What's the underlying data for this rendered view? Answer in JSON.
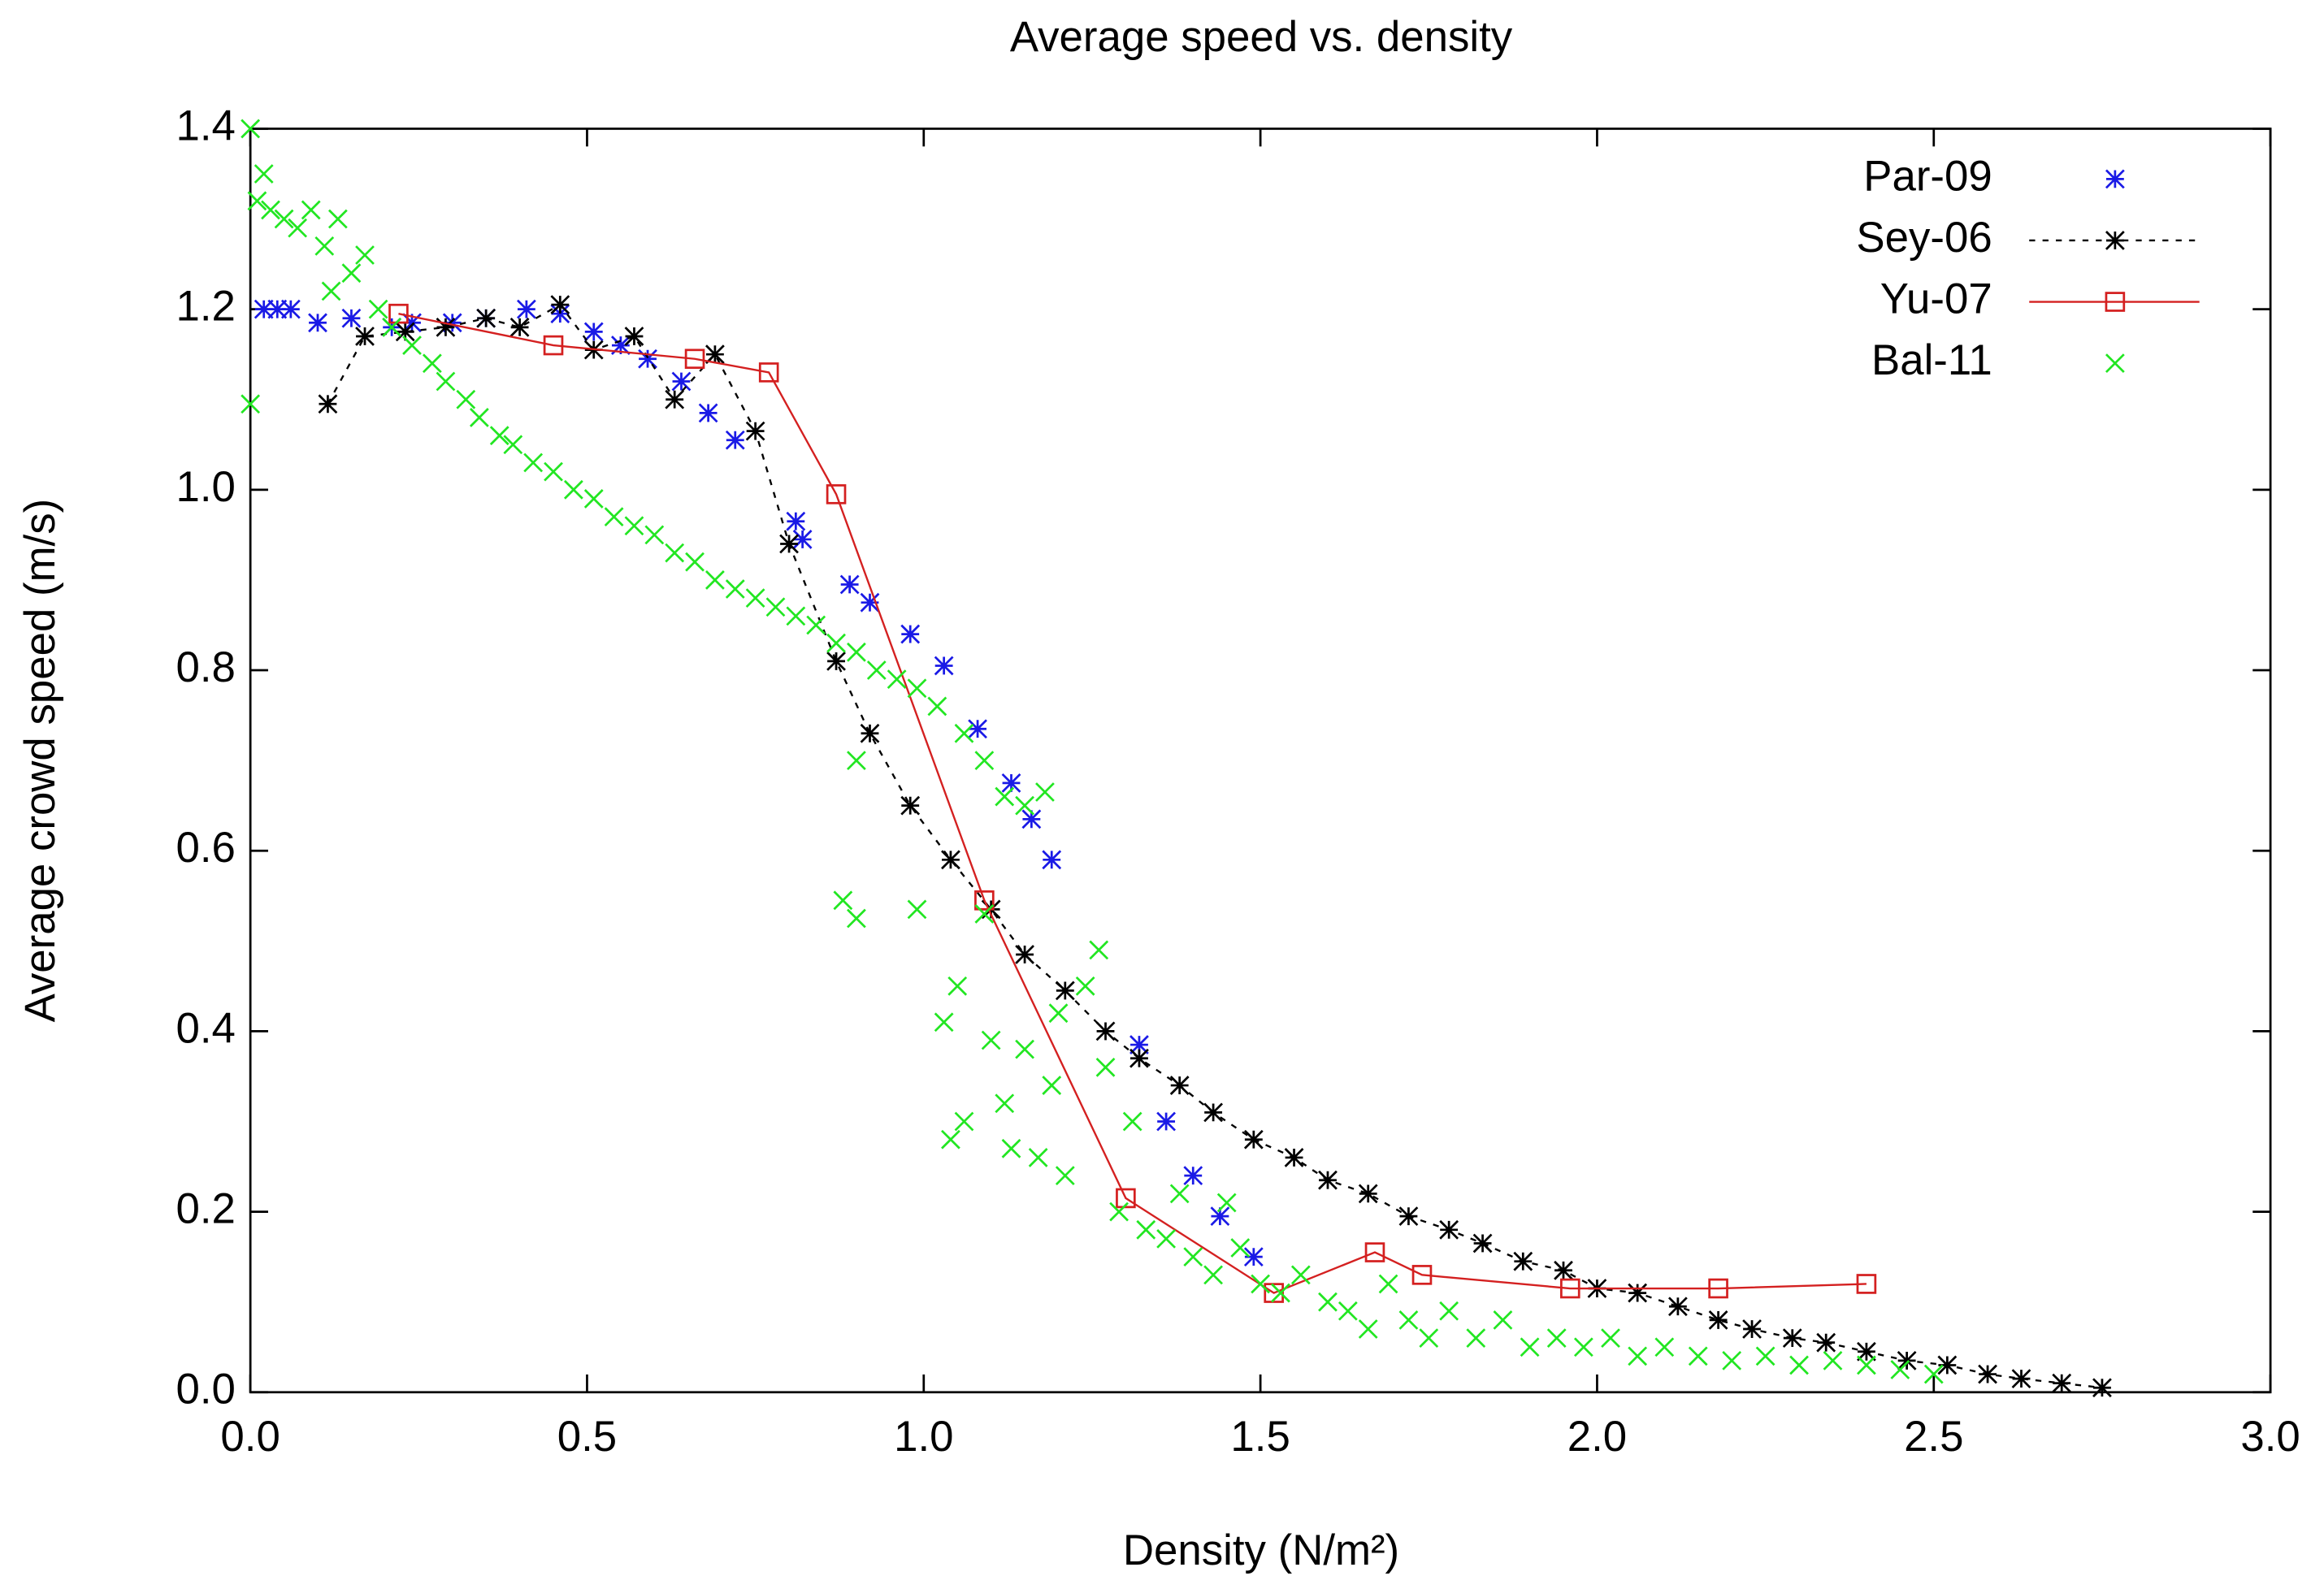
{
  "chart_data": {
    "type": "scatter",
    "title": "Average speed vs. density",
    "x_label": "Density (N/m²)",
    "y_label": "Average crowd speed (m/s)",
    "xlim": [
      0,
      3
    ],
    "ylim": [
      0,
      1.4
    ],
    "xticks": [
      {
        "value": 0,
        "label": "0.0"
      },
      0.5,
      {
        "value": 1,
        "label": "1.0"
      },
      1.5,
      {
        "value": 2,
        "label": "2.0"
      },
      2.5,
      {
        "value": 3,
        "label": "3.0"
      }
    ],
    "yticks": [
      {
        "value": 0,
        "label": "0.0"
      },
      0.2,
      0.4,
      0.6,
      0.8,
      {
        "value": 1,
        "label": "1.0"
      },
      1.2,
      1.4
    ],
    "grid": false,
    "legend": "top-right",
    "series": [
      {
        "name": "Par-09",
        "color": "#1a1ae6",
        "marker": "asterisk",
        "line": "none",
        "x": [
          0.02,
          0.04,
          0.06,
          0.1,
          0.15,
          0.21,
          0.24,
          0.3,
          0.35,
          0.41,
          0.46,
          0.51,
          0.55,
          0.59,
          0.64,
          0.68,
          0.72,
          0.81,
          0.82,
          0.89,
          0.92,
          0.98,
          1.03,
          1.08,
          1.13,
          1.16,
          1.19,
          1.32,
          1.36,
          1.4,
          1.44,
          1.49
        ],
        "values": [
          1.2,
          1.2,
          1.2,
          1.185,
          1.19,
          1.18,
          1.185,
          1.185,
          1.19,
          1.2,
          1.195,
          1.175,
          1.16,
          1.145,
          1.12,
          1.085,
          1.055,
          0.965,
          0.945,
          0.895,
          0.875,
          0.84,
          0.805,
          0.735,
          0.675,
          0.635,
          0.59,
          0.385,
          0.3,
          0.24,
          0.195,
          0.15
        ]
      },
      {
        "name": "Sey-06",
        "color": "#000000",
        "marker": "asterisk",
        "line": "dashed",
        "x": [
          0.115,
          0.17,
          0.23,
          0.29,
          0.35,
          0.4,
          0.46,
          0.51,
          0.57,
          0.63,
          0.69,
          0.75,
          0.8,
          0.87,
          0.92,
          0.98,
          1.04,
          1.1,
          1.15,
          1.21,
          1.27,
          1.32,
          1.38,
          1.43,
          1.49,
          1.55,
          1.6,
          1.66,
          1.72,
          1.78,
          1.83,
          1.89,
          1.95,
          2.0,
          2.06,
          2.12,
          2.18,
          2.23,
          2.29,
          2.34,
          2.4,
          2.46,
          2.52,
          2.58,
          2.63,
          2.69,
          2.75
        ],
        "values": [
          1.095,
          1.17,
          1.175,
          1.18,
          1.19,
          1.18,
          1.205,
          1.155,
          1.17,
          1.1,
          1.15,
          1.065,
          0.94,
          0.81,
          0.73,
          0.65,
          0.59,
          0.535,
          0.485,
          0.445,
          0.4,
          0.37,
          0.34,
          0.31,
          0.28,
          0.26,
          0.235,
          0.22,
          0.195,
          0.18,
          0.165,
          0.145,
          0.135,
          0.115,
          0.11,
          0.095,
          0.08,
          0.07,
          0.06,
          0.055,
          0.045,
          0.035,
          0.03,
          0.02,
          0.015,
          0.01,
          0.005
        ]
      },
      {
        "name": "Yu-07",
        "color": "#d42020",
        "marker": "square",
        "line": "solid",
        "x": [
          0.22,
          0.45,
          0.66,
          0.77,
          0.87,
          1.09,
          1.3,
          1.52,
          1.67,
          1.74,
          1.96,
          2.18,
          2.4
        ],
        "values": [
          1.195,
          1.16,
          1.145,
          1.13,
          0.995,
          0.545,
          0.215,
          0.11,
          0.155,
          0.13,
          0.115,
          0.115,
          0.12
        ]
      },
      {
        "name": "Bal-11",
        "color": "#22e622",
        "marker": "cross",
        "line": "none",
        "x": [
          0.0,
          0.0,
          0.01,
          0.02,
          0.03,
          0.05,
          0.07,
          0.09,
          0.11,
          0.12,
          0.13,
          0.15,
          0.17,
          0.19,
          0.21,
          0.24,
          0.27,
          0.29,
          0.32,
          0.34,
          0.37,
          0.39,
          0.42,
          0.45,
          0.48,
          0.51,
          0.54,
          0.57,
          0.6,
          0.63,
          0.66,
          0.69,
          0.72,
          0.75,
          0.78,
          0.81,
          0.84,
          0.87,
          0.9,
          0.93,
          0.96,
          0.99,
          1.02,
          1.06,
          1.09,
          1.12,
          1.15,
          1.18,
          0.88,
          0.9,
          0.9,
          0.99,
          1.03,
          1.05,
          1.06,
          1.04,
          1.09,
          1.1,
          1.12,
          1.13,
          1.15,
          1.17,
          1.19,
          1.2,
          1.21,
          1.24,
          1.26,
          1.27,
          1.29,
          1.31,
          1.33,
          1.36,
          1.38,
          1.4,
          1.43,
          1.45,
          1.47,
          1.5,
          1.53,
          1.56,
          1.6,
          1.63,
          1.66,
          1.69,
          1.72,
          1.75,
          1.78,
          1.82,
          1.86,
          1.9,
          1.94,
          1.98,
          2.02,
          2.06,
          2.1,
          2.15,
          2.2,
          2.25,
          2.3,
          2.35,
          2.4,
          2.45,
          2.5
        ],
        "values": [
          1.4,
          1.095,
          1.32,
          1.35,
          1.31,
          1.3,
          1.29,
          1.31,
          1.27,
          1.22,
          1.3,
          1.24,
          1.26,
          1.2,
          1.18,
          1.16,
          1.14,
          1.12,
          1.1,
          1.08,
          1.06,
          1.05,
          1.03,
          1.02,
          1.0,
          0.99,
          0.97,
          0.96,
          0.95,
          0.93,
          0.92,
          0.9,
          0.89,
          0.88,
          0.87,
          0.86,
          0.85,
          0.83,
          0.82,
          0.8,
          0.79,
          0.78,
          0.76,
          0.73,
          0.7,
          0.66,
          0.65,
          0.665,
          0.545,
          0.525,
          0.7,
          0.535,
          0.41,
          0.45,
          0.3,
          0.28,
          0.53,
          0.39,
          0.32,
          0.27,
          0.38,
          0.26,
          0.34,
          0.42,
          0.24,
          0.45,
          0.49,
          0.36,
          0.2,
          0.3,
          0.18,
          0.17,
          0.22,
          0.15,
          0.13,
          0.21,
          0.16,
          0.12,
          0.11,
          0.13,
          0.1,
          0.09,
          0.07,
          0.12,
          0.08,
          0.06,
          0.09,
          0.06,
          0.08,
          0.05,
          0.06,
          0.05,
          0.06,
          0.04,
          0.05,
          0.04,
          0.035,
          0.04,
          0.03,
          0.035,
          0.03,
          0.025,
          0.02
        ]
      }
    ]
  }
}
